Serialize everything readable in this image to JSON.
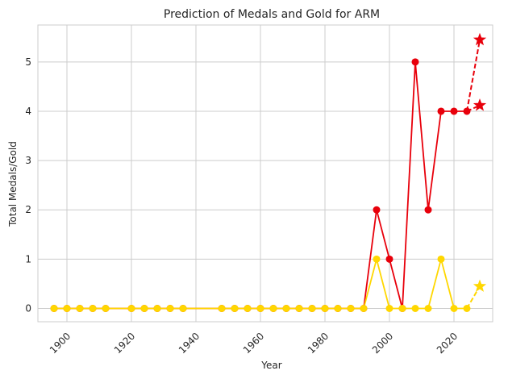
{
  "chart_data": {
    "type": "line",
    "title": "Prediction of Medals and Gold for ARM",
    "xlabel": "Year",
    "ylabel": "Total Medals/Gold",
    "xlim": [
      1891,
      2032
    ],
    "ylim": [
      -0.27,
      5.75
    ],
    "xticks": [
      1900,
      1920,
      1940,
      1960,
      1980,
      2000,
      2020
    ],
    "yticks": [
      0,
      1,
      2,
      3,
      4,
      5
    ],
    "grid": true,
    "colors": {
      "medals": "#e8000b",
      "gold": "#ffd700"
    },
    "series": [
      {
        "key": "medals",
        "x": [
          1896,
          1900,
          1904,
          1908,
          1912,
          1920,
          1924,
          1928,
          1932,
          1936,
          1948,
          1952,
          1956,
          1960,
          1964,
          1968,
          1972,
          1976,
          1980,
          1984,
          1988,
          1992,
          1996,
          2000,
          2004,
          2008,
          2012,
          2016,
          2020,
          2024
        ],
        "y": [
          0,
          0,
          0,
          0,
          0,
          0,
          0,
          0,
          0,
          0,
          0,
          0,
          0,
          0,
          0,
          0,
          0,
          0,
          0,
          0,
          0,
          0,
          2,
          1,
          0,
          5,
          2,
          4,
          4,
          4
        ]
      },
      {
        "key": "gold",
        "x": [
          1896,
          1900,
          1904,
          1908,
          1912,
          1920,
          1924,
          1928,
          1932,
          1936,
          1948,
          1952,
          1956,
          1960,
          1964,
          1968,
          1972,
          1976,
          1980,
          1984,
          1988,
          1992,
          1996,
          2000,
          2004,
          2008,
          2012,
          2016,
          2020,
          2024
        ],
        "y": [
          0,
          0,
          0,
          0,
          0,
          0,
          0,
          0,
          0,
          0,
          0,
          0,
          0,
          0,
          0,
          0,
          0,
          0,
          0,
          0,
          0,
          0,
          1,
          0,
          0,
          0,
          0,
          1,
          0,
          0
        ]
      }
    ],
    "predictions": [
      {
        "key": "medals",
        "from": [
          2024,
          4
        ],
        "points": [
          [
            2028,
            5.45
          ],
          [
            2028,
            4.12
          ]
        ]
      },
      {
        "key": "gold",
        "from": [
          2024,
          0
        ],
        "points": [
          [
            2028,
            0.45
          ]
        ]
      }
    ]
  }
}
